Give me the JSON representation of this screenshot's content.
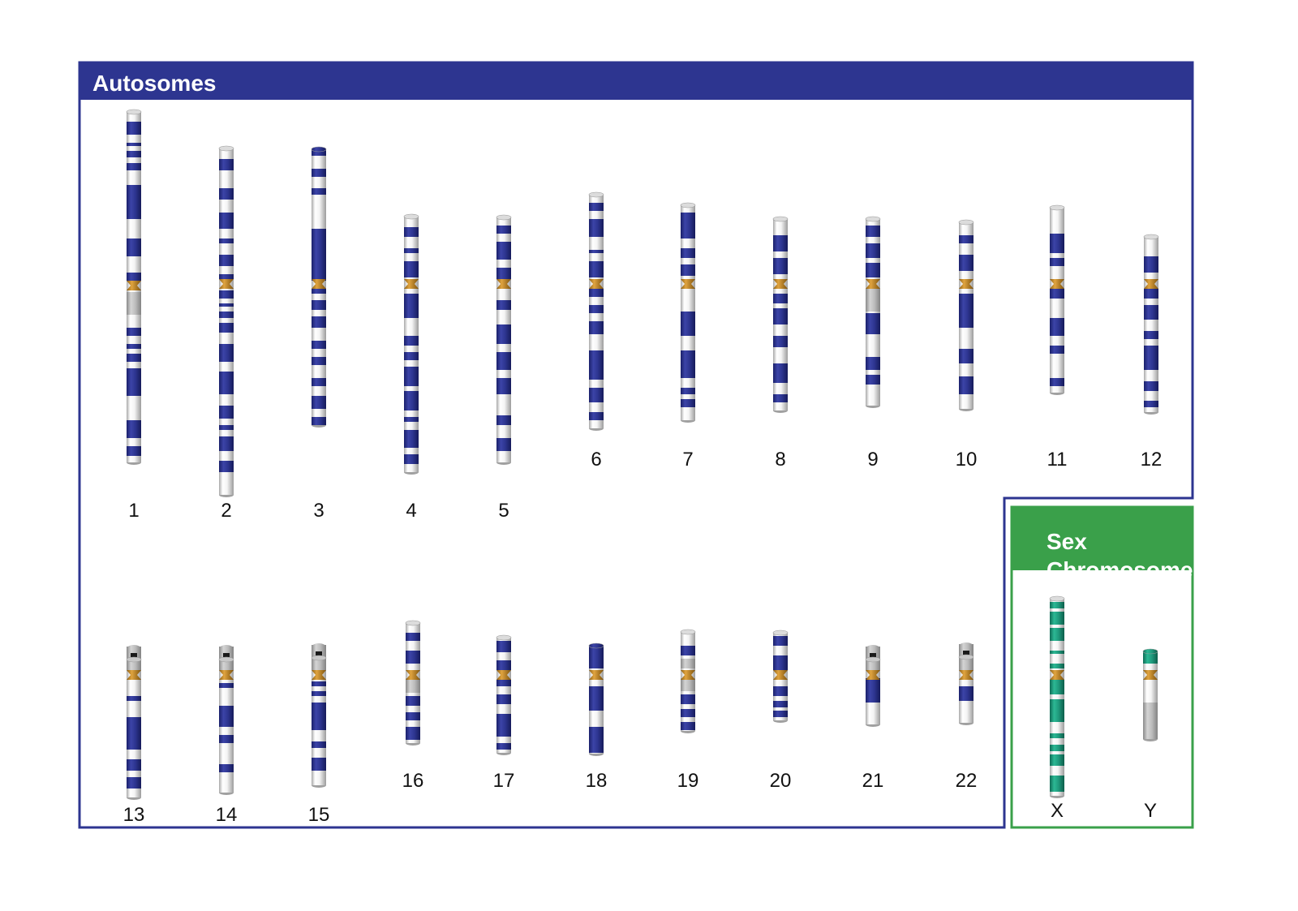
{
  "autosomes": {
    "title": "Autosomes",
    "chromosomes": [
      {
        "label": "1"
      },
      {
        "label": "2"
      },
      {
        "label": "3"
      },
      {
        "label": "4"
      },
      {
        "label": "5"
      },
      {
        "label": "6"
      },
      {
        "label": "7"
      },
      {
        "label": "8"
      },
      {
        "label": "9"
      },
      {
        "label": "10"
      },
      {
        "label": "11"
      },
      {
        "label": "12"
      },
      {
        "label": "13"
      },
      {
        "label": "14"
      },
      {
        "label": "15"
      },
      {
        "label": "16"
      },
      {
        "label": "17"
      },
      {
        "label": "18"
      },
      {
        "label": "19"
      },
      {
        "label": "20"
      },
      {
        "label": "21"
      },
      {
        "label": "22"
      }
    ]
  },
  "sex_chromosomes": {
    "title": "Sex\nChromosomes",
    "chromosomes": [
      {
        "label": "X"
      },
      {
        "label": "Y"
      }
    ]
  },
  "colors": {
    "autosome_accent": "#2d3590",
    "sex_accent": "#3aa04a",
    "band_dark": "#2d3590",
    "band_sex": "#1f9a7d",
    "centromere": "#c98a1e",
    "heterochromatin": "#b8b8b8"
  }
}
